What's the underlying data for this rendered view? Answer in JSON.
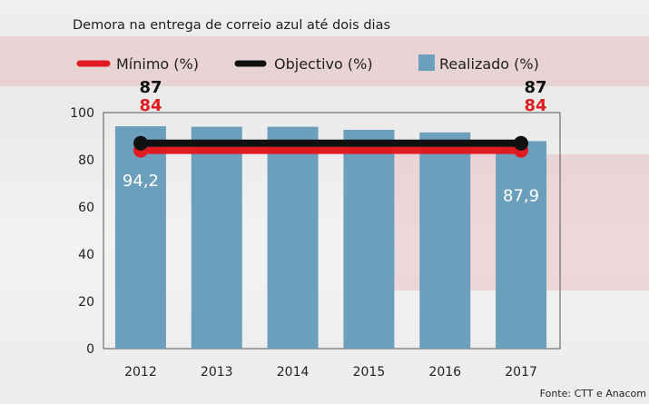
{
  "chart_data": {
    "type": "bar",
    "title": "Demora na entrega de correio azul até dois dias",
    "categories": [
      "2012",
      "2013",
      "2014",
      "2015",
      "2016",
      "2017"
    ],
    "ylim": [
      0,
      100
    ],
    "yticks": [
      0,
      20,
      40,
      60,
      80,
      100
    ],
    "series": [
      {
        "name": "Realizado (%)",
        "kind": "bar",
        "color": "#6b9fbb",
        "values": [
          94.2,
          94.0,
          94.0,
          92.7,
          91.6,
          87.9
        ]
      },
      {
        "name": "Mínimo (%)",
        "kind": "line",
        "color": "#e11b22",
        "values": [
          84,
          84,
          84,
          84,
          84,
          84
        ]
      },
      {
        "name": "Objectivo (%)",
        "kind": "line",
        "color": "#111111",
        "values": [
          87,
          87,
          87,
          87,
          87,
          87
        ]
      }
    ],
    "bar_labels": [
      {
        "index": 0,
        "text": "94,2"
      },
      {
        "index": 5,
        "text": "87,9"
      }
    ],
    "callouts": {
      "left": {
        "objectivo": "87",
        "minimo": "84"
      },
      "right": {
        "objectivo": "87",
        "minimo": "84"
      }
    },
    "source": "Fonte: CTT e Anacom",
    "legend_placement": "top"
  }
}
